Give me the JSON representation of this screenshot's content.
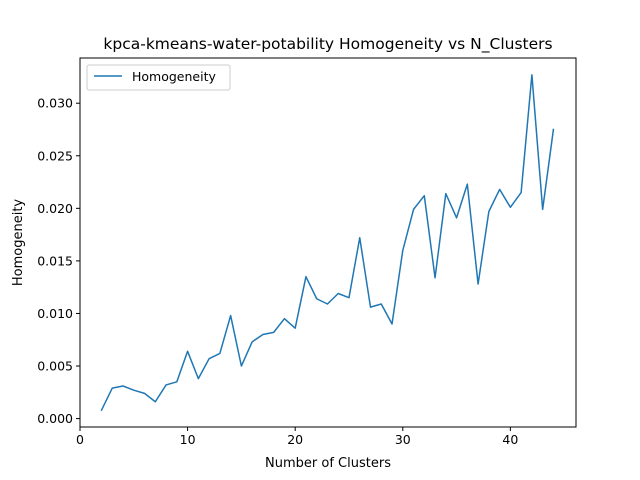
{
  "chart_data": {
    "type": "line",
    "title": "kpca-kmeans-water-potability Homogeneity vs N_Clusters",
    "xlabel": "Number of Clusters",
    "ylabel": "Homogeneity",
    "xlim": [
      0,
      46.1
    ],
    "ylim": [
      -0.0008,
      0.0343
    ],
    "x_ticks": [
      0,
      10,
      20,
      30,
      40
    ],
    "x_tick_labels": [
      "0",
      "10",
      "20",
      "30",
      "40"
    ],
    "y_ticks": [
      0.0,
      0.005,
      0.01,
      0.015,
      0.02,
      0.025,
      0.03
    ],
    "y_tick_labels": [
      "0.000",
      "0.005",
      "0.010",
      "0.015",
      "0.020",
      "0.025",
      "0.030"
    ],
    "grid": false,
    "legend_position": "upper left",
    "series": [
      {
        "name": "Homogeneity",
        "color": "#1f77b4",
        "x": [
          2,
          3,
          4,
          5,
          6,
          7,
          8,
          9,
          10,
          11,
          12,
          13,
          14,
          15,
          16,
          17,
          18,
          19,
          20,
          21,
          22,
          23,
          24,
          25,
          26,
          27,
          28,
          29,
          30,
          31,
          32,
          33,
          34,
          35,
          36,
          37,
          38,
          39,
          40,
          41,
          42,
          43,
          44
        ],
        "y": [
          0.0008,
          0.0029,
          0.0031,
          0.0027,
          0.0024,
          0.0016,
          0.0032,
          0.0035,
          0.0064,
          0.0038,
          0.0057,
          0.0062,
          0.0098,
          0.005,
          0.0073,
          0.008,
          0.0082,
          0.0095,
          0.0086,
          0.0135,
          0.0114,
          0.0109,
          0.0119,
          0.0115,
          0.0172,
          0.0106,
          0.0109,
          0.009,
          0.016,
          0.0199,
          0.0212,
          0.0134,
          0.0214,
          0.0191,
          0.0223,
          0.0128,
          0.0197,
          0.0218,
          0.0201,
          0.0215,
          0.0327,
          0.0199,
          0.0275
        ]
      }
    ]
  }
}
